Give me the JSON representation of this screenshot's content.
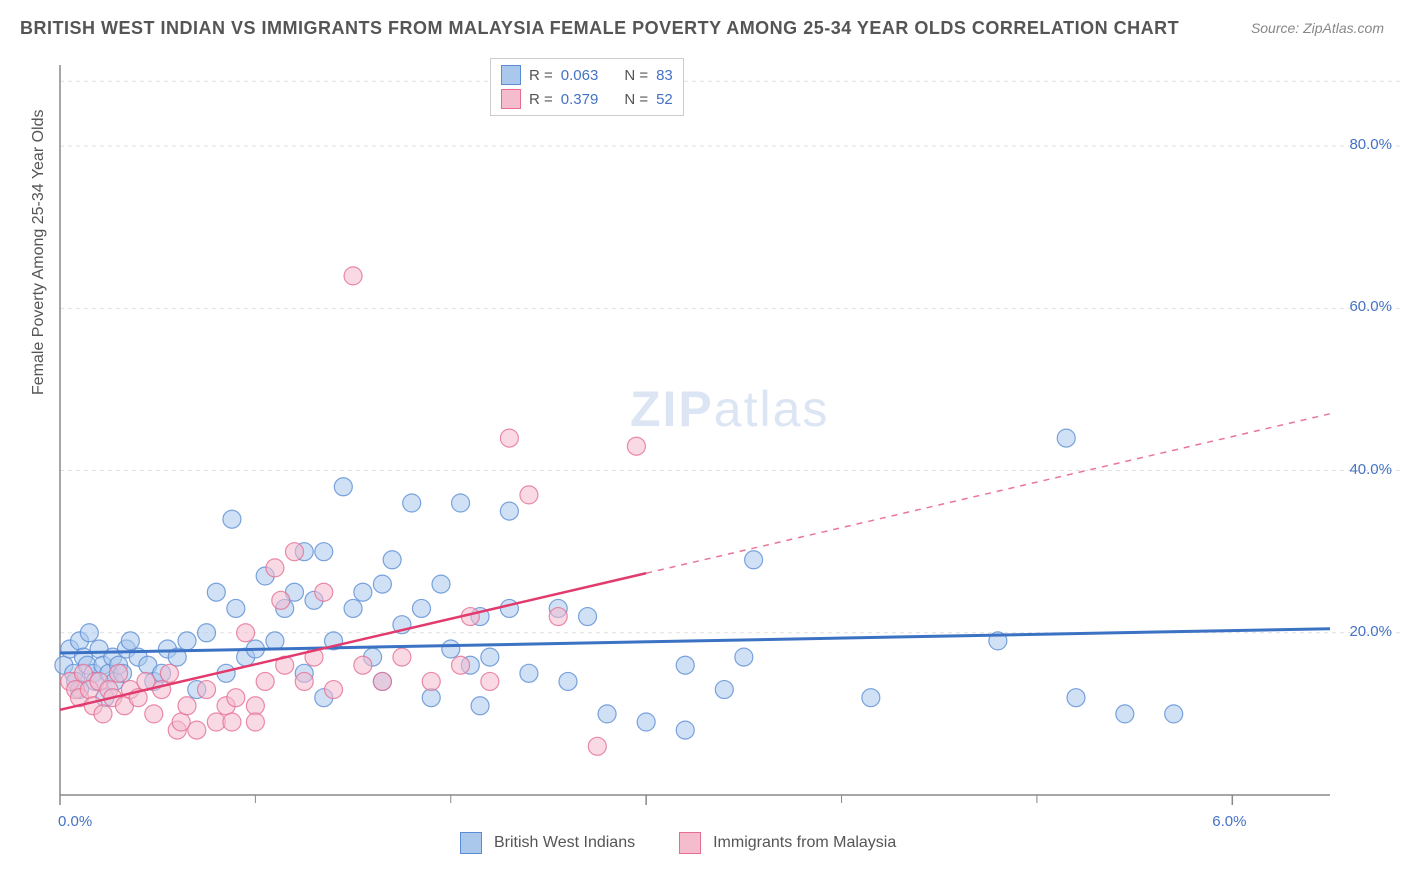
{
  "title": "BRITISH WEST INDIAN VS IMMIGRANTS FROM MALAYSIA FEMALE POVERTY AMONG 25-34 YEAR OLDS CORRELATION CHART",
  "source": "Source: ZipAtlas.com",
  "watermark": "ZIPatlas",
  "y_axis_label": "Female Poverty Among 25-34 Year Olds",
  "chart": {
    "type": "scatter",
    "background_color": "#ffffff",
    "grid_color": "#e0e0e0",
    "axis_line_color": "#888888",
    "xlim": [
      0,
      6.5
    ],
    "ylim": [
      0,
      90
    ],
    "x_ticks": [
      0,
      3,
      6
    ],
    "x_tick_labels": [
      "0.0%",
      "",
      "6.0%"
    ],
    "x_minor_ticks": [
      1,
      2,
      4,
      5
    ],
    "y_ticks": [
      20,
      40,
      60,
      80
    ],
    "y_tick_labels": [
      "20.0%",
      "40.0%",
      "60.0%",
      "80.0%"
    ],
    "marker_radius": 9,
    "marker_opacity": 0.55,
    "series": [
      {
        "name": "British West Indians",
        "color_fill": "#a9c8ec",
        "color_stroke": "#5b8dd6",
        "r_value": "0.063",
        "n_value": "83",
        "trend": {
          "color": "#3c72c4",
          "width": 3,
          "x1": 0.0,
          "y1": 17.5,
          "x2": 6.5,
          "y2": 20.5,
          "dash_solid_until_x": 6.5
        },
        "points": [
          [
            0.02,
            16
          ],
          [
            0.05,
            18
          ],
          [
            0.07,
            15
          ],
          [
            0.08,
            14
          ],
          [
            0.1,
            13
          ],
          [
            0.1,
            19
          ],
          [
            0.12,
            17
          ],
          [
            0.14,
            16
          ],
          [
            0.15,
            20
          ],
          [
            0.17,
            15
          ],
          [
            0.18,
            14
          ],
          [
            0.2,
            18
          ],
          [
            0.22,
            16
          ],
          [
            0.23,
            12
          ],
          [
            0.25,
            15
          ],
          [
            0.27,
            17
          ],
          [
            0.28,
            14
          ],
          [
            0.3,
            16
          ],
          [
            0.32,
            15
          ],
          [
            0.34,
            18
          ],
          [
            0.36,
            19
          ],
          [
            0.4,
            17
          ],
          [
            0.45,
            16
          ],
          [
            0.48,
            14
          ],
          [
            0.52,
            15
          ],
          [
            0.55,
            18
          ],
          [
            0.6,
            17
          ],
          [
            0.65,
            19
          ],
          [
            0.7,
            13
          ],
          [
            0.75,
            20
          ],
          [
            0.8,
            25
          ],
          [
            0.85,
            15
          ],
          [
            0.9,
            23
          ],
          [
            0.88,
            34
          ],
          [
            0.95,
            17
          ],
          [
            1.0,
            18
          ],
          [
            1.05,
            27
          ],
          [
            1.1,
            19
          ],
          [
            1.15,
            23
          ],
          [
            1.2,
            25
          ],
          [
            1.25,
            30
          ],
          [
            1.25,
            15
          ],
          [
            1.3,
            24
          ],
          [
            1.35,
            12
          ],
          [
            1.35,
            30
          ],
          [
            1.4,
            19
          ],
          [
            1.45,
            38
          ],
          [
            1.5,
            23
          ],
          [
            1.55,
            25
          ],
          [
            1.6,
            17
          ],
          [
            1.65,
            26
          ],
          [
            1.65,
            14
          ],
          [
            1.7,
            29
          ],
          [
            1.75,
            21
          ],
          [
            1.8,
            36
          ],
          [
            1.85,
            23
          ],
          [
            1.9,
            12
          ],
          [
            1.95,
            26
          ],
          [
            2.0,
            18
          ],
          [
            2.05,
            36
          ],
          [
            2.1,
            16
          ],
          [
            2.15,
            22
          ],
          [
            2.15,
            11
          ],
          [
            2.2,
            17
          ],
          [
            2.3,
            23
          ],
          [
            2.4,
            15
          ],
          [
            2.55,
            23
          ],
          [
            2.6,
            14
          ],
          [
            2.7,
            22
          ],
          [
            2.8,
            10
          ],
          [
            3.0,
            9
          ],
          [
            3.2,
            16
          ],
          [
            3.2,
            8
          ],
          [
            3.4,
            13
          ],
          [
            3.5,
            17
          ],
          [
            3.55,
            29
          ],
          [
            4.15,
            12
          ],
          [
            4.8,
            19
          ],
          [
            5.15,
            44
          ],
          [
            5.2,
            12
          ],
          [
            5.7,
            10
          ],
          [
            5.45,
            10
          ],
          [
            2.3,
            35
          ]
        ]
      },
      {
        "name": "Immigrants from Malaysia",
        "color_fill": "#f4bccd",
        "color_stroke": "#e56f93",
        "r_value": "0.379",
        "n_value": "52",
        "trend": {
          "color": "#e23a6d",
          "width": 2.5,
          "x1": 0.0,
          "y1": 10.5,
          "x2": 6.5,
          "y2": 47,
          "dash_solid_until_x": 3.0
        },
        "points": [
          [
            0.05,
            14
          ],
          [
            0.08,
            13
          ],
          [
            0.1,
            12
          ],
          [
            0.12,
            15
          ],
          [
            0.15,
            13
          ],
          [
            0.17,
            11
          ],
          [
            0.2,
            14
          ],
          [
            0.22,
            10
          ],
          [
            0.25,
            13
          ],
          [
            0.27,
            12
          ],
          [
            0.3,
            15
          ],
          [
            0.33,
            11
          ],
          [
            0.36,
            13
          ],
          [
            0.4,
            12
          ],
          [
            0.44,
            14
          ],
          [
            0.48,
            10
          ],
          [
            0.52,
            13
          ],
          [
            0.56,
            15
          ],
          [
            0.6,
            8
          ],
          [
            0.62,
            9
          ],
          [
            0.65,
            11
          ],
          [
            0.7,
            8
          ],
          [
            0.75,
            13
          ],
          [
            0.8,
            9
          ],
          [
            0.85,
            11
          ],
          [
            0.88,
            9
          ],
          [
            0.9,
            12
          ],
          [
            0.95,
            20
          ],
          [
            1.0,
            11
          ],
          [
            1.0,
            9
          ],
          [
            1.05,
            14
          ],
          [
            1.1,
            28
          ],
          [
            1.13,
            24
          ],
          [
            1.15,
            16
          ],
          [
            1.2,
            30
          ],
          [
            1.25,
            14
          ],
          [
            1.3,
            17
          ],
          [
            1.35,
            25
          ],
          [
            1.4,
            13
          ],
          [
            1.5,
            64
          ],
          [
            1.55,
            16
          ],
          [
            1.65,
            14
          ],
          [
            1.75,
            17
          ],
          [
            1.9,
            14
          ],
          [
            2.05,
            16
          ],
          [
            2.1,
            22
          ],
          [
            2.3,
            44
          ],
          [
            2.4,
            37
          ],
          [
            2.55,
            22
          ],
          [
            2.75,
            6
          ],
          [
            2.95,
            43
          ],
          [
            2.2,
            14
          ]
        ]
      }
    ]
  },
  "legend_top": {
    "r_label": "R =",
    "n_label": "N ="
  },
  "legend_bottom": {
    "series1": "British West Indians",
    "series2": "Immigrants from Malaysia"
  }
}
